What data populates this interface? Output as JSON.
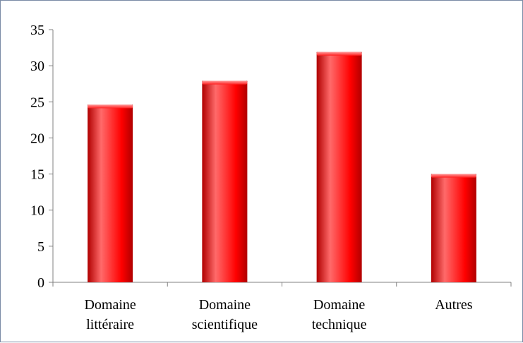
{
  "chart_data": {
    "type": "bar",
    "categories": [
      [
        "Domaine",
        "littéraire"
      ],
      [
        "Domaine",
        "scientifique"
      ],
      [
        "Domaine",
        "technique"
      ],
      [
        "Autres"
      ]
    ],
    "values": [
      24.6,
      27.9,
      31.9,
      15.0
    ],
    "ylim": [
      0,
      35
    ],
    "yticks": [
      "0",
      "5",
      "10",
      "15",
      "20",
      "25",
      "30",
      "35"
    ],
    "grid": false,
    "legend": "none",
    "bar_color": "#ff0000",
    "bar_highlight": "#ff6a6a",
    "bar_shadow": "#b00000",
    "axis_color": "#808080"
  }
}
